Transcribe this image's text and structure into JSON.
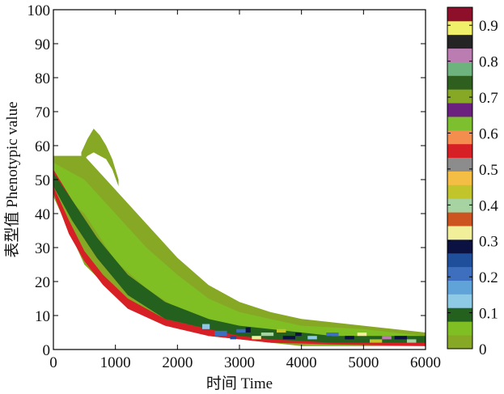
{
  "chart_data": {
    "type": "heatmap",
    "xlabel": "时间 Time",
    "ylabel": "表型值 Phenotypic value",
    "xlim": [
      0,
      6000
    ],
    "ylim": [
      0,
      100
    ],
    "x_ticks": [
      0,
      1000,
      2000,
      3000,
      4000,
      5000,
      6000
    ],
    "y_ticks": [
      0,
      10,
      20,
      30,
      40,
      50,
      60,
      70,
      80,
      90,
      100
    ],
    "colorbar": {
      "range": [
        0,
        0.95
      ],
      "tick_labels": [
        "0",
        "0.1",
        "0.2",
        "0.3",
        "0.4",
        "0.5",
        "0.6",
        "0.7",
        "0.8",
        "0.9"
      ],
      "tick_values": [
        0,
        0.1,
        0.2,
        0.3,
        0.4,
        0.5,
        0.6,
        0.7,
        0.8,
        0.9
      ],
      "colors": [
        "#86a825",
        "#7fbf23",
        "#24611e",
        "#8ec9e6",
        "#5fa3d8",
        "#3d6fbe",
        "#1f4f9a",
        "#0b1140",
        "#f1ef9a",
        "#cc5420",
        "#a7d2a1",
        "#c2c42c",
        "#f4be44",
        "#8c8c8c",
        "#d71f26",
        "#f48e4e",
        "#7cbf2f",
        "#6b1f7f",
        "#86a825",
        "#2e5f1e",
        "#6cb37d",
        "#bb7db1",
        "#242424",
        "#f0ef6a",
        "#8e0f2a"
      ]
    },
    "density_bands": [
      {
        "name": "outer",
        "level": 0.02,
        "x": [
          0,
          500,
          1000,
          1500,
          2000,
          2500,
          3000,
          3500,
          4000,
          5000,
          6000
        ],
        "y_low": [
          45,
          25,
          16,
          10,
          7,
          4,
          3,
          2,
          1,
          1,
          1
        ],
        "y_high": [
          57,
          57,
          47,
          37,
          27,
          19,
          14,
          11,
          9,
          7,
          5
        ]
      },
      {
        "name": "outer-spike",
        "level": 0.02,
        "x": [
          450,
          550,
          650,
          750,
          850,
          950,
          1050
        ],
        "y_low": [
          55,
          57,
          58,
          57,
          56,
          53,
          48
        ],
        "y_high": [
          58,
          62,
          65,
          63,
          60,
          56,
          50
        ]
      },
      {
        "name": "upper-tail",
        "level": 0.05,
        "x": [
          0,
          500,
          1000,
          1500,
          2000,
          2500,
          3000,
          3500,
          4000,
          5000,
          6000
        ],
        "y_low": [
          48,
          40,
          26,
          18,
          12,
          8,
          6,
          4,
          3,
          2,
          2
        ],
        "y_high": [
          55,
          50,
          40,
          30,
          22,
          15,
          11,
          9,
          7,
          6,
          4
        ]
      },
      {
        "name": "ridge-high",
        "level": 0.55,
        "x": [
          0,
          300,
          700,
          1000,
          1400,
          2000,
          2500
        ],
        "y_low": [
          50,
          40,
          29,
          22,
          15,
          10,
          8
        ],
        "y_high": [
          53,
          44,
          33,
          25,
          18,
          12,
          9
        ]
      },
      {
        "name": "ridge-low",
        "level": 0.55,
        "x": [
          0,
          250,
          500,
          800,
          1200,
          1800,
          2500,
          3500,
          4500,
          6000
        ],
        "y_low": [
          46,
          34,
          26,
          19,
          12,
          7,
          4,
          2,
          1.5,
          1
        ],
        "y_high": [
          48,
          38,
          29,
          22,
          15,
          9,
          6,
          4,
          3,
          2.5
        ]
      },
      {
        "name": "inner",
        "level": 0.1,
        "x": [
          0,
          300,
          700,
          1200,
          1800,
          2500,
          3000,
          3500,
          4000,
          4500,
          5000,
          6000
        ],
        "y_low": [
          48,
          38,
          27,
          16,
          9,
          6,
          4,
          3,
          2.5,
          2,
          2,
          2
        ],
        "y_high": [
          52,
          44,
          33,
          22,
          14,
          9,
          7,
          6,
          5,
          4,
          4,
          4
        ]
      }
    ],
    "hotspots": [
      {
        "x": 2400,
        "y": 6,
        "w": 120,
        "h": 1.5,
        "level": 0.15
      },
      {
        "x": 2600,
        "y": 4,
        "w": 200,
        "h": 1.5,
        "level": 0.2
      },
      {
        "x": 2850,
        "y": 3,
        "w": 100,
        "h": 1,
        "level": 0.25
      },
      {
        "x": 2950,
        "y": 5,
        "w": 150,
        "h": 1,
        "level": 0.2
      },
      {
        "x": 3100,
        "y": 5,
        "w": 80,
        "h": 1.5,
        "level": 0.3
      },
      {
        "x": 3200,
        "y": 3,
        "w": 150,
        "h": 1,
        "level": 0.33
      },
      {
        "x": 3350,
        "y": 4,
        "w": 200,
        "h": 1,
        "level": 0.38
      },
      {
        "x": 3600,
        "y": 5,
        "w": 150,
        "h": 1,
        "level": 0.45
      },
      {
        "x": 3700,
        "y": 3,
        "w": 200,
        "h": 1,
        "level": 0.28
      },
      {
        "x": 3900,
        "y": 4,
        "w": 100,
        "h": 1,
        "level": 0.3
      },
      {
        "x": 4100,
        "y": 3,
        "w": 150,
        "h": 1,
        "level": 0.12
      },
      {
        "x": 4400,
        "y": 4,
        "w": 200,
        "h": 1,
        "level": 0.22
      },
      {
        "x": 4700,
        "y": 3,
        "w": 150,
        "h": 1,
        "level": 0.28
      },
      {
        "x": 4900,
        "y": 4,
        "w": 150,
        "h": 1,
        "level": 0.33
      },
      {
        "x": 5100,
        "y": 2,
        "w": 200,
        "h": 1,
        "level": 0.45
      },
      {
        "x": 5300,
        "y": 3,
        "w": 150,
        "h": 1,
        "level": 0.8
      },
      {
        "x": 5500,
        "y": 3,
        "w": 200,
        "h": 1,
        "level": 0.28
      },
      {
        "x": 5700,
        "y": 2,
        "w": 150,
        "h": 1,
        "level": 0.38
      }
    ]
  }
}
